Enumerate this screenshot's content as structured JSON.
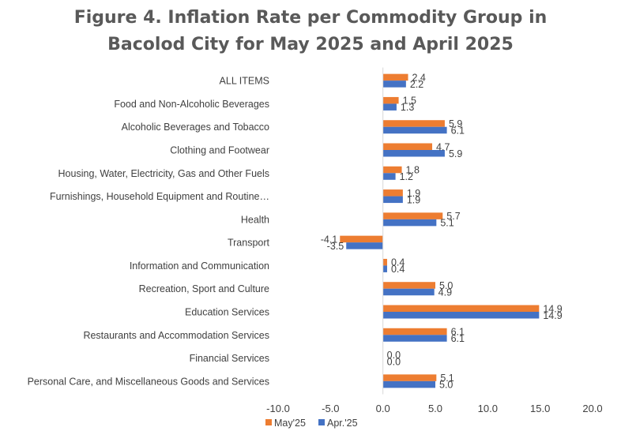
{
  "title": {
    "line1": "Figure 4. Inflation Rate per Commodity Group in",
    "line2": "Bacolod City for May 2025 and April 2025"
  },
  "chart_data": {
    "type": "bar",
    "orientation": "horizontal",
    "categories": [
      "ALL ITEMS",
      "Food and Non-Alcoholic Beverages",
      "Alcoholic Beverages and Tobacco",
      "Clothing and Footwear",
      "Housing, Water, Electricity, Gas and Other Fuels",
      "Furnishings, Household Equipment and Routine…",
      "Health",
      "Transport",
      "Information and Communication",
      "Recreation, Sport and Culture",
      "Education Services",
      "Restaurants and Accommodation Services",
      "Financial Services",
      "Personal Care, and Miscellaneous Goods and Services"
    ],
    "series": [
      {
        "name": "May'25",
        "color": "#ED7D31",
        "values": [
          2.4,
          1.5,
          5.9,
          4.7,
          1.8,
          1.9,
          5.7,
          -4.1,
          0.4,
          5.0,
          14.9,
          6.1,
          0.0,
          5.1
        ]
      },
      {
        "name": "Apr.'25",
        "color": "#4472C4",
        "values": [
          2.2,
          1.3,
          6.1,
          5.9,
          1.2,
          1.9,
          5.1,
          -3.5,
          0.4,
          4.9,
          14.9,
          6.1,
          0.0,
          5.0
        ]
      }
    ],
    "xlim": [
      -10.0,
      20.0
    ],
    "xticks": [
      -10.0,
      -5.0,
      0.0,
      5.0,
      10.0,
      15.0,
      20.0
    ],
    "grid": false,
    "legend": "bottom",
    "axis_color": "#d9d9d9"
  }
}
